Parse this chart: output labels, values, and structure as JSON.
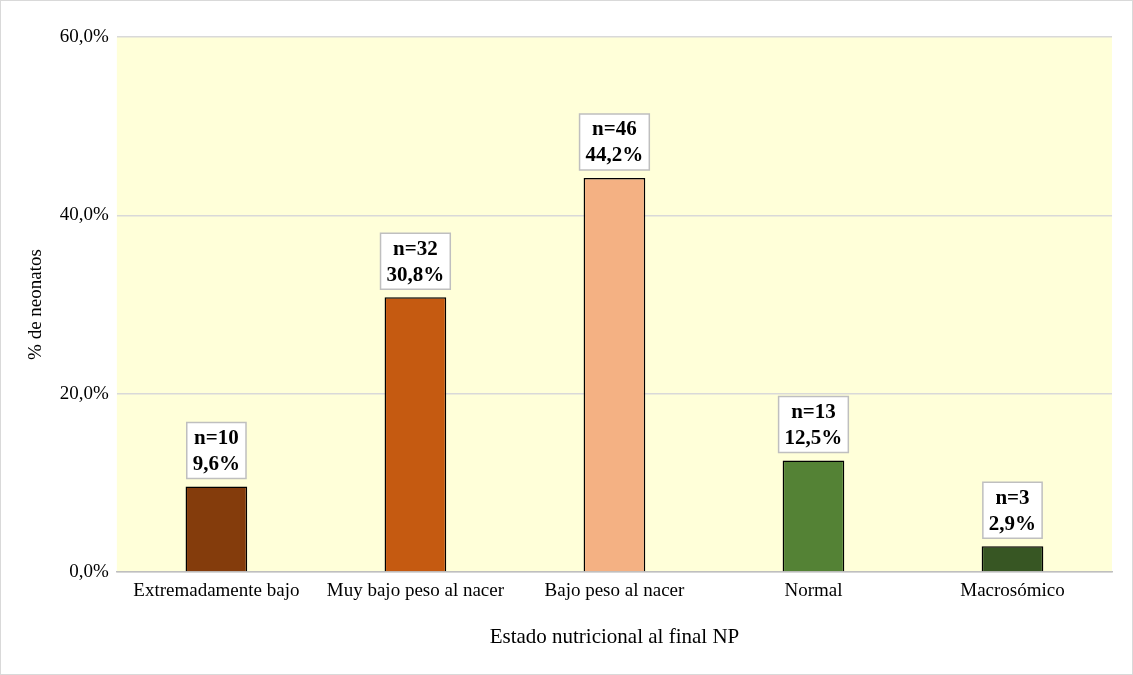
{
  "chart_data": {
    "type": "bar",
    "xlabel": "Estado nutricional al final NP",
    "ylabel": "% de neonatos",
    "categories": [
      "Extremadamente bajo",
      "Muy bajo peso al nacer",
      "Bajo peso al nacer",
      "Normal",
      "Macrosómico"
    ],
    "values": [
      9.6,
      30.8,
      44.2,
      12.5,
      2.9
    ],
    "colors": [
      "#843c0c",
      "#c55a11",
      "#f4b183",
      "#548235",
      "#375623"
    ],
    "value_labels": [
      "n=10\n9,6%",
      "n=32\n30,8%",
      "n=46\n44,2%",
      "n=13\n12,5%",
      "n=3\n2,9%"
    ],
    "ylim": [
      0,
      60
    ],
    "yticks": [
      {
        "value": 0,
        "label": "0,0%"
      },
      {
        "value": 20,
        "label": "20,0%"
      },
      {
        "value": 40,
        "label": "40,0%"
      },
      {
        "value": 60,
        "label": "60,0%"
      }
    ],
    "grid": "y",
    "legend": false
  }
}
